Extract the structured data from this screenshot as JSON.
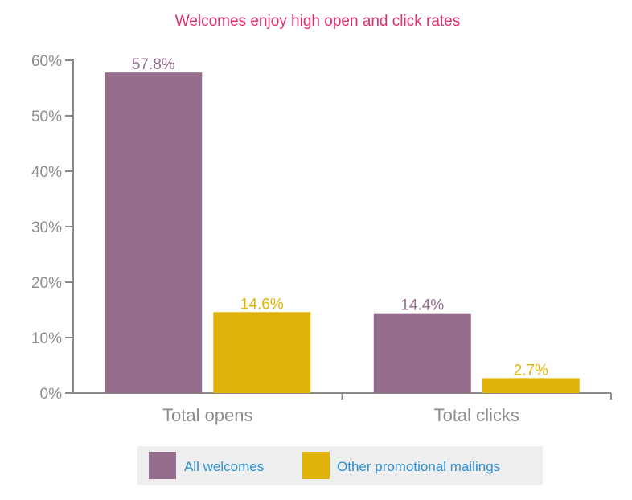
{
  "chart_data": {
    "type": "bar",
    "title": "Welcomes enjoy high open and click rates",
    "categories": [
      "Total opens",
      "Total clicks"
    ],
    "series": [
      {
        "name": "All welcomes",
        "values": [
          57.8,
          14.4
        ],
        "labels": [
          "57.8%",
          "14.4%"
        ],
        "color": "#946c8c"
      },
      {
        "name": "Other promotional mailings",
        "values": [
          14.6,
          2.7
        ],
        "labels": [
          "14.6%",
          "2.7%"
        ],
        "color": "#e1b308"
      }
    ],
    "ylim": [
      0,
      60
    ],
    "yticks": [
      0,
      10,
      20,
      30,
      40,
      50,
      60
    ],
    "ytick_labels": [
      "0%",
      "10%",
      "20%",
      "30%",
      "40%",
      "50%",
      "60%"
    ],
    "xlabel": "",
    "ylabel": "",
    "grid": false,
    "legend_position": "bottom-center"
  },
  "colors": {
    "title": "#e0306a",
    "axis": "#8a8a8a",
    "tick_text": "#8c8c8c",
    "category_text": "#8c8c8c",
    "legend_text": "#2b8fd0",
    "legend_background": "#eeeeee"
  }
}
